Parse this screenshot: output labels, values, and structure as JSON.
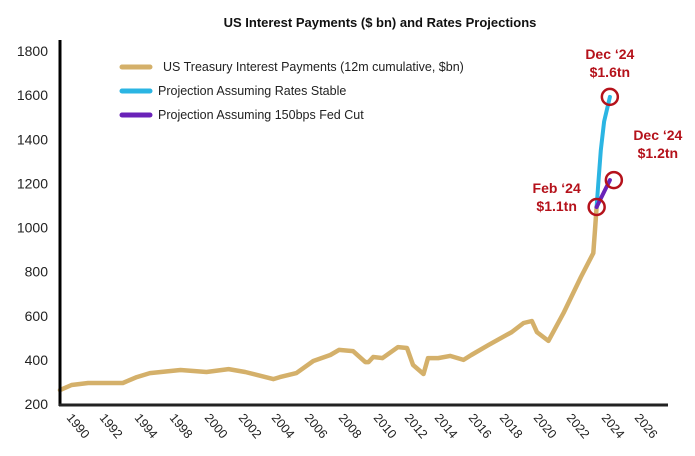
{
  "chart_data": {
    "type": "line",
    "title": "US Interest Payments ($ bn) and Rates Projections",
    "xlabel": "",
    "ylabel": "",
    "ylim": [
      200,
      1800
    ],
    "yticks": [
      200,
      400,
      600,
      800,
      1000,
      1200,
      1400,
      1600,
      1800
    ],
    "xticks": [
      1990,
      1992,
      1994,
      1998,
      2000,
      2002,
      2004,
      2006,
      2008,
      2010,
      2012,
      2014,
      2016,
      2018,
      2020,
      2022,
      2024,
      2026
    ],
    "grid": false,
    "legend_placement": "top-left",
    "series": [
      {
        "name": "US Treasury Interest Payments (12m cumulative, $bn)",
        "color": "#d4b06a",
        "points": [
          [
            1990,
            263
          ],
          [
            1990.7,
            286
          ],
          [
            1991.7,
            295
          ],
          [
            1993.7,
            295
          ],
          [
            1995.0,
            322
          ],
          [
            1996.5,
            340
          ],
          [
            1999.0,
            354
          ],
          [
            2000.5,
            345
          ],
          [
            2001.8,
            358
          ],
          [
            2002.8,
            345
          ],
          [
            2004.5,
            313
          ],
          [
            2004.9,
            322
          ],
          [
            2005.9,
            340
          ],
          [
            2006.9,
            395
          ],
          [
            2007.9,
            422
          ],
          [
            2008.4,
            445
          ],
          [
            2009.2,
            440
          ],
          [
            2009.9,
            390
          ],
          [
            2010.1,
            390
          ],
          [
            2010.4,
            413
          ],
          [
            2011.0,
            408
          ],
          [
            2012.0,
            458
          ],
          [
            2012.6,
            454
          ],
          [
            2013.0,
            377
          ],
          [
            2013.7,
            336
          ],
          [
            2014.0,
            408
          ],
          [
            2014.6,
            408
          ],
          [
            2015.3,
            418
          ],
          [
            2016.1,
            400
          ],
          [
            2016.6,
            422
          ],
          [
            2017.7,
            467
          ],
          [
            2019.1,
            526
          ],
          [
            2019.8,
            567
          ],
          [
            2020.3,
            576
          ],
          [
            2020.6,
            526
          ],
          [
            2021.3,
            486
          ],
          [
            2022.2,
            612
          ],
          [
            2023.2,
            776
          ],
          [
            2023.9,
            884
          ],
          [
            2024.0,
            989
          ],
          [
            2024.1,
            1093
          ]
        ]
      },
      {
        "name": "Projection Assuming Rates Stable",
        "color": "#2bb5e3",
        "points": [
          [
            2024.1,
            1093
          ],
          [
            2024.2,
            1200
          ],
          [
            2024.35,
            1350
          ],
          [
            2024.55,
            1480
          ],
          [
            2024.9,
            1592
          ]
        ]
      },
      {
        "name": "Projection Assuming 150bps Fed Cut",
        "color": "#6a22b8",
        "points": [
          [
            2024.1,
            1093
          ],
          [
            2024.9,
            1215
          ]
        ]
      }
    ],
    "annotations": [
      {
        "line1": "Dec ‘24",
        "line2": "$1.6tn",
        "x": 2024.9,
        "y": 1592
      },
      {
        "line1": "Dec ‘24",
        "line2": "$1.2tn",
        "x": 2024.9,
        "y": 1215
      },
      {
        "line1": "Feb ‘24",
        "line2": "$1.1tn",
        "x": 2024.1,
        "y": 1093
      }
    ],
    "annotation_color": "#b5121b"
  }
}
